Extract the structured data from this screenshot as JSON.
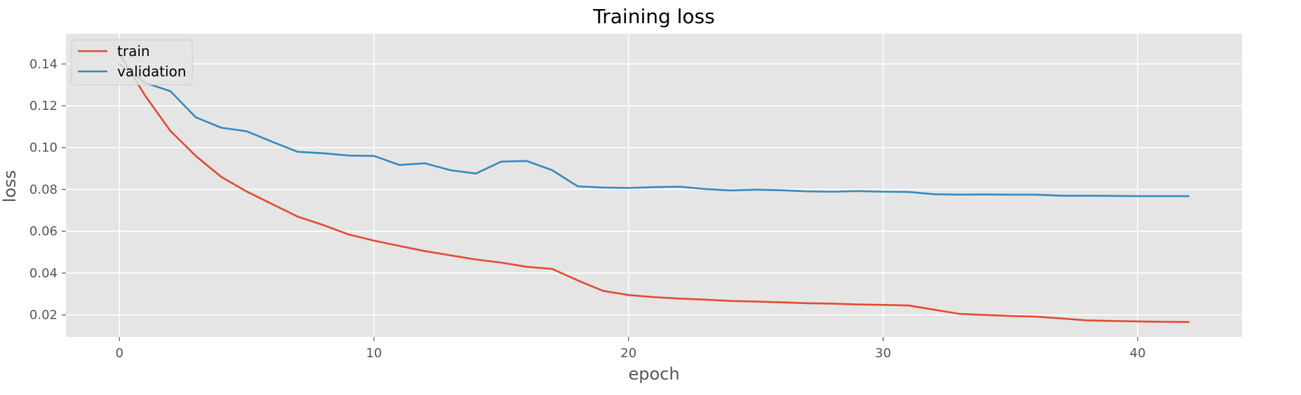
{
  "chart_data": {
    "type": "line",
    "title": "Training loss",
    "xlabel": "epoch",
    "ylabel": "loss",
    "xlim": [
      -2.1,
      44.1
    ],
    "ylim": [
      0.0095,
      0.1545
    ],
    "xticks": [
      0,
      10,
      20,
      30,
      40
    ],
    "yticks": [
      0.02,
      0.04,
      0.06,
      0.08,
      0.1,
      0.12,
      0.14
    ],
    "ytick_labels": [
      "0.02",
      "0.04",
      "0.06",
      "0.08",
      "0.10",
      "0.12",
      "0.14"
    ],
    "grid": true,
    "legend_position": "top-left",
    "background": "#E5E5E5",
    "x": [
      0,
      1,
      2,
      3,
      4,
      5,
      6,
      7,
      8,
      9,
      10,
      11,
      12,
      13,
      14,
      15,
      16,
      17,
      18,
      19,
      20,
      21,
      22,
      23,
      24,
      25,
      26,
      27,
      28,
      29,
      30,
      31,
      32,
      33,
      34,
      35,
      36,
      37,
      38,
      39,
      40,
      41,
      42
    ],
    "series": [
      {
        "name": "train",
        "color": "#E24A33",
        "values": [
          0.145,
          0.125,
          0.108,
          0.096,
          0.086,
          0.079,
          0.073,
          0.067,
          0.063,
          0.0585,
          0.0555,
          0.053,
          0.0505,
          0.0485,
          0.0465,
          0.045,
          0.043,
          0.042,
          0.0365,
          0.0315,
          0.0295,
          0.0285,
          0.0278,
          0.0273,
          0.0267,
          0.0264,
          0.026,
          0.0256,
          0.0254,
          0.025,
          0.0248,
          0.0245,
          0.0225,
          0.0205,
          0.02,
          0.0195,
          0.0192,
          0.0183,
          0.0174,
          0.0171,
          0.0169,
          0.0167,
          0.0166
        ]
      },
      {
        "name": "validation",
        "color": "#348ABD",
        "values": [
          0.14,
          0.131,
          0.127,
          0.1145,
          0.1095,
          0.1078,
          0.1028,
          0.098,
          0.0973,
          0.0962,
          0.096,
          0.0917,
          0.0925,
          0.0892,
          0.0876,
          0.0933,
          0.0936,
          0.0892,
          0.0815,
          0.0809,
          0.0807,
          0.0811,
          0.0813,
          0.0802,
          0.0795,
          0.0799,
          0.0796,
          0.0791,
          0.0789,
          0.0792,
          0.0789,
          0.0788,
          0.0777,
          0.0775,
          0.0776,
          0.0775,
          0.0775,
          0.077,
          0.077,
          0.0769,
          0.0768,
          0.0768,
          0.0768
        ]
      }
    ]
  }
}
